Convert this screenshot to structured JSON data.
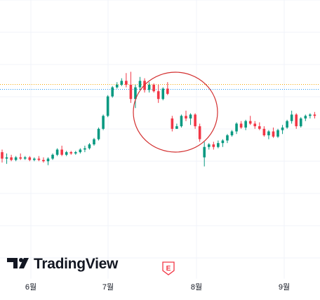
{
  "chart_data": {
    "type": "candlestick",
    "x_ticks": [
      "6월",
      "7월",
      "8월",
      "9월"
    ],
    "grid": true,
    "up_color": "#089981",
    "down_color": "#f23645",
    "price_line_colors": [
      "#f7a600",
      "#2196f3"
    ],
    "ylim": [
      0,
      100
    ],
    "candles": [
      {
        "o": 34,
        "h": 36,
        "l": 26,
        "c": 29
      },
      {
        "o": 29,
        "h": 33,
        "l": 25,
        "c": 30
      },
      {
        "o": 30,
        "h": 32,
        "l": 27,
        "c": 28
      },
      {
        "o": 28,
        "h": 31,
        "l": 27,
        "c": 30
      },
      {
        "o": 30,
        "h": 33,
        "l": 28,
        "c": 29
      },
      {
        "o": 29,
        "h": 31,
        "l": 28,
        "c": 30
      },
      {
        "o": 30,
        "h": 31,
        "l": 27,
        "c": 28
      },
      {
        "o": 28,
        "h": 30,
        "l": 27,
        "c": 29
      },
      {
        "o": 29,
        "h": 31,
        "l": 27,
        "c": 28
      },
      {
        "o": 28,
        "h": 30,
        "l": 26,
        "c": 27
      },
      {
        "o": 27,
        "h": 30,
        "l": 24,
        "c": 29
      },
      {
        "o": 29,
        "h": 33,
        "l": 28,
        "c": 32
      },
      {
        "o": 32,
        "h": 37,
        "l": 31,
        "c": 36
      },
      {
        "o": 36,
        "h": 39,
        "l": 31,
        "c": 32
      },
      {
        "o": 32,
        "h": 35,
        "l": 31,
        "c": 34
      },
      {
        "o": 34,
        "h": 35,
        "l": 32,
        "c": 33
      },
      {
        "o": 33,
        "h": 35,
        "l": 32,
        "c": 34
      },
      {
        "o": 34,
        "h": 37,
        "l": 33,
        "c": 36
      },
      {
        "o": 36,
        "h": 39,
        "l": 34,
        "c": 37
      },
      {
        "o": 37,
        "h": 41,
        "l": 36,
        "c": 40
      },
      {
        "o": 40,
        "h": 45,
        "l": 39,
        "c": 44
      },
      {
        "o": 44,
        "h": 53,
        "l": 43,
        "c": 52
      },
      {
        "o": 52,
        "h": 63,
        "l": 51,
        "c": 62
      },
      {
        "o": 62,
        "h": 78,
        "l": 61,
        "c": 77
      },
      {
        "o": 77,
        "h": 85,
        "l": 76,
        "c": 84
      },
      {
        "o": 84,
        "h": 88,
        "l": 83,
        "c": 86
      },
      {
        "o": 86,
        "h": 91,
        "l": 85,
        "c": 89
      },
      {
        "o": 89,
        "h": 95,
        "l": 84,
        "c": 86
      },
      {
        "o": 86,
        "h": 96,
        "l": 72,
        "c": 75
      },
      {
        "o": 75,
        "h": 86,
        "l": 68,
        "c": 84
      },
      {
        "o": 84,
        "h": 92,
        "l": 82,
        "c": 89
      },
      {
        "o": 89,
        "h": 91,
        "l": 80,
        "c": 82
      },
      {
        "o": 82,
        "h": 88,
        "l": 80,
        "c": 86
      },
      {
        "o": 86,
        "h": 87,
        "l": 80,
        "c": 81
      },
      {
        "o": 81,
        "h": 86,
        "l": 72,
        "c": 75
      },
      {
        "o": 75,
        "h": 84,
        "l": 74,
        "c": 83
      },
      {
        "o": 83,
        "h": 88,
        "l": 78,
        "c": 79
      },
      {
        "o": 60,
        "h": 62,
        "l": 50,
        "c": 52
      },
      {
        "o": 52,
        "h": 56,
        "l": 52,
        "c": 54
      },
      {
        "o": 54,
        "h": 63,
        "l": 53,
        "c": 62
      },
      {
        "o": 62,
        "h": 66,
        "l": 58,
        "c": 60
      },
      {
        "o": 60,
        "h": 64,
        "l": 55,
        "c": 63
      },
      {
        "o": 63,
        "h": 64,
        "l": 52,
        "c": 54
      },
      {
        "o": 54,
        "h": 56,
        "l": 42,
        "c": 44
      },
      {
        "o": 30,
        "h": 42,
        "l": 23,
        "c": 38
      },
      {
        "o": 38,
        "h": 41,
        "l": 36,
        "c": 40
      },
      {
        "o": 40,
        "h": 42,
        "l": 36,
        "c": 38
      },
      {
        "o": 38,
        "h": 43,
        "l": 37,
        "c": 41
      },
      {
        "o": 41,
        "h": 44,
        "l": 38,
        "c": 43
      },
      {
        "o": 43,
        "h": 48,
        "l": 41,
        "c": 47
      },
      {
        "o": 47,
        "h": 51,
        "l": 46,
        "c": 50
      },
      {
        "o": 50,
        "h": 57,
        "l": 48,
        "c": 56
      },
      {
        "o": 56,
        "h": 58,
        "l": 52,
        "c": 53
      },
      {
        "o": 53,
        "h": 59,
        "l": 51,
        "c": 58
      },
      {
        "o": 58,
        "h": 62,
        "l": 55,
        "c": 56
      },
      {
        "o": 56,
        "h": 58,
        "l": 52,
        "c": 54
      },
      {
        "o": 54,
        "h": 57,
        "l": 51,
        "c": 52
      },
      {
        "o": 52,
        "h": 54,
        "l": 46,
        "c": 47
      },
      {
        "o": 47,
        "h": 51,
        "l": 44,
        "c": 50
      },
      {
        "o": 50,
        "h": 53,
        "l": 45,
        "c": 46
      },
      {
        "o": 46,
        "h": 52,
        "l": 45,
        "c": 51
      },
      {
        "o": 51,
        "h": 55,
        "l": 48,
        "c": 53
      },
      {
        "o": 53,
        "h": 59,
        "l": 52,
        "c": 58
      },
      {
        "o": 58,
        "h": 66,
        "l": 56,
        "c": 63
      },
      {
        "o": 63,
        "h": 64,
        "l": 52,
        "c": 54
      },
      {
        "o": 54,
        "h": 61,
        "l": 53,
        "c": 60
      },
      {
        "o": 60,
        "h": 63,
        "l": 58,
        "c": 62
      },
      {
        "o": 62,
        "h": 64,
        "l": 60,
        "c": 63
      },
      {
        "o": 63,
        "h": 65,
        "l": 60,
        "c": 62
      }
    ]
  },
  "logo": {
    "text": "TradingView",
    "icon": "tradingview-logo-icon"
  },
  "earnings_marker": {
    "label": "E",
    "color": "#f23645"
  },
  "annotation": {
    "shape": "circle",
    "color": "#d32f2f"
  }
}
